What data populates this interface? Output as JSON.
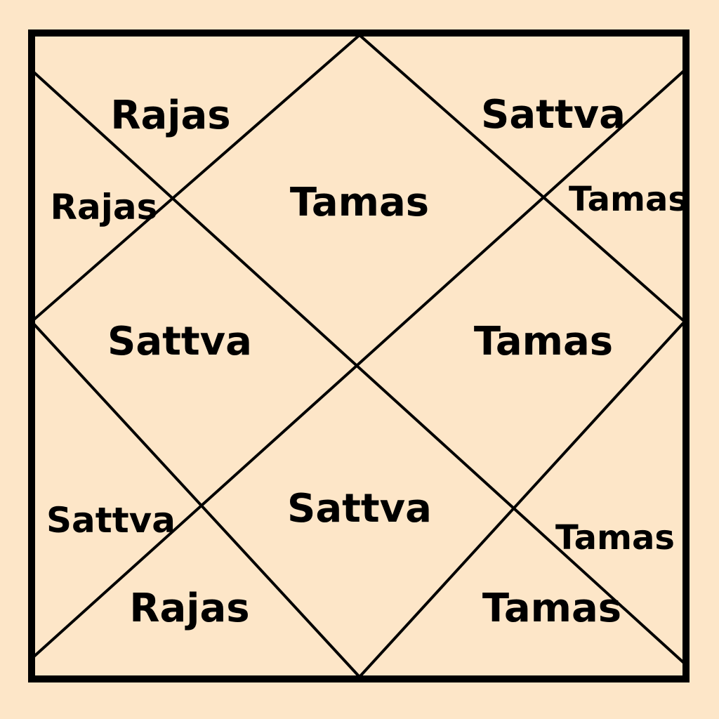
{
  "colors": {
    "background": "#FDE6C8",
    "line": "#000000",
    "text": "#000000"
  },
  "houses": [
    {
      "label": "Tamas"
    },
    {
      "label": "Rajas"
    },
    {
      "label": "Rajas"
    },
    {
      "label": "Sattva"
    },
    {
      "label": "Sattva"
    },
    {
      "label": "Rajas"
    },
    {
      "label": "Sattva"
    },
    {
      "label": "Tamas"
    },
    {
      "label": "Tamas"
    },
    {
      "label": "Tamas"
    },
    {
      "label": "Sattva"
    },
    {
      "label": "Tamas"
    }
  ]
}
